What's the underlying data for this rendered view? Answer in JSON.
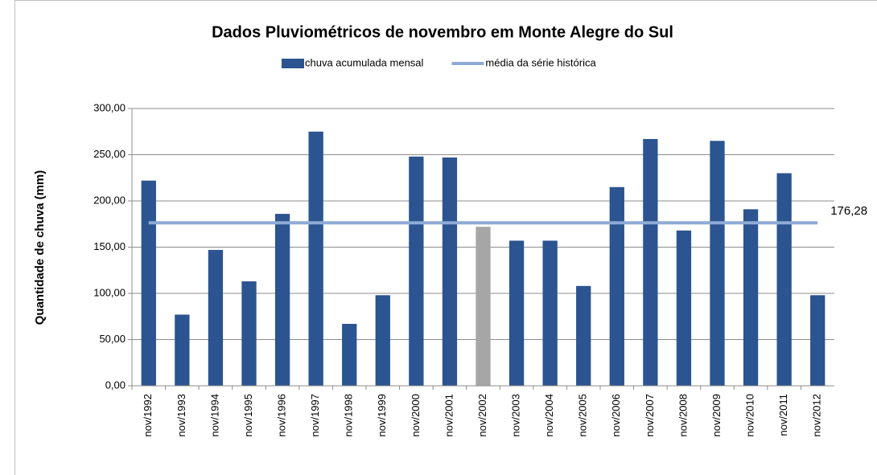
{
  "chart_data": {
    "type": "bar",
    "title": "Dados Pluviométricos de novembro em Monte Alegre do Sul",
    "y_label": "Quantidade de chuva (mm)",
    "categories": [
      "nov/1992",
      "nov/1993",
      "nov/1994",
      "nov/1995",
      "nov/1996",
      "nov/1997",
      "nov/1998",
      "nov/1999",
      "nov/2000",
      "nov/2001",
      "nov/2002",
      "nov/2003",
      "nov/2004",
      "nov/2005",
      "nov/2006",
      "nov/2007",
      "nov/2008",
      "nov/2009",
      "nov/2010",
      "nov/2011",
      "nov/2012"
    ],
    "series": [
      {
        "name": "chuva acumulada mensal",
        "type": "bar",
        "color": "#2b5490",
        "colors": [
          "#2b5490",
          "#2b5490",
          "#2b5490",
          "#2b5490",
          "#2b5490",
          "#2b5490",
          "#2b5490",
          "#2b5490",
          "#2b5490",
          "#2b5490",
          "#a6a6a6",
          "#2b5490",
          "#2b5490",
          "#2b5490",
          "#2b5490",
          "#2b5490",
          "#2b5490",
          "#2b5490",
          "#2b5490",
          "#2b5490",
          "#2b5490"
        ],
        "values": [
          222,
          77,
          147,
          113,
          186,
          275,
          67,
          98,
          248,
          247,
          172,
          157,
          157,
          108,
          215,
          267,
          168,
          265,
          191,
          230,
          98
        ]
      },
      {
        "name": "média da série histórica",
        "type": "line",
        "color": "#8eaad6",
        "values": [
          176.28,
          176.28,
          176.28,
          176.28,
          176.28,
          176.28,
          176.28,
          176.28,
          176.28,
          176.28,
          176.28,
          176.28,
          176.28,
          176.28,
          176.28,
          176.28,
          176.28,
          176.28,
          176.28,
          176.28,
          176.28
        ],
        "value_labels": [
          null,
          null,
          null,
          null,
          null,
          null,
          null,
          null,
          null,
          null,
          null,
          null,
          null,
          null,
          null,
          null,
          null,
          null,
          null,
          null,
          "176,28"
        ]
      }
    ],
    "ylim": [
      0,
      300
    ],
    "yticks": [
      {
        "value": 0,
        "label": "0,00"
      },
      {
        "value": 50,
        "label": "50,00"
      },
      {
        "value": 100,
        "label": "100,00"
      },
      {
        "value": 150,
        "label": "150,00"
      },
      {
        "value": 200,
        "label": "200,00"
      },
      {
        "value": 250,
        "label": "250,00"
      },
      {
        "value": 300,
        "label": "300,00"
      }
    ],
    "grid": true,
    "legend": "top"
  }
}
